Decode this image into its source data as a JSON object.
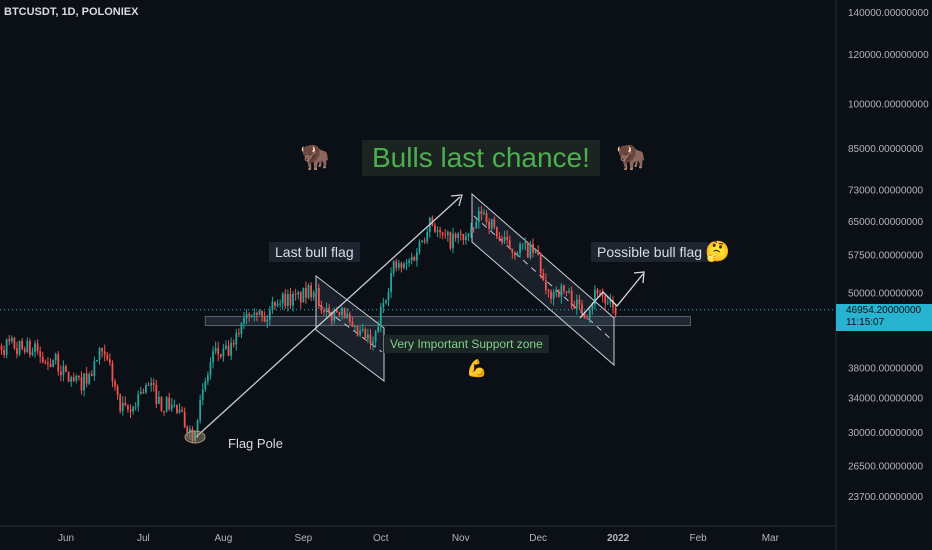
{
  "symbol_title": "BTCUSDT, 1D, POLONIEX",
  "colors": {
    "up": "#26a69a",
    "down": "#ef5350",
    "accent": "#27b4d0",
    "headline": "#4caf50"
  },
  "annotations": {
    "headline": "Bulls last chance!",
    "last_bull_flag": "Last bull flag",
    "possible_bull_flag": "Possible bull flag",
    "support_zone": "Very Important Support zone",
    "flag_pole": "Flag Pole",
    "bison_icon": "bison-emoji",
    "flexed_arm_icon": "flexed-biceps-emoji",
    "thinking_face_icon": "thinking-face-emoji"
  },
  "last_price": {
    "price": "46954.20000000",
    "countdown": "11:15:07"
  },
  "chart_data": {
    "type": "candlestick",
    "title": "BTCUSDT, 1D, POLONIEX",
    "x_ticks": [
      "Jun",
      "Jul",
      "Aug",
      "Sep",
      "Oct",
      "Nov",
      "Dec",
      "2022",
      "Feb",
      "Mar"
    ],
    "y_tick_labels": [
      "140000.00000000",
      "120000.00000000",
      "100000.00000000",
      "85000.00000000",
      "73000.00000000",
      "65000.00000000",
      "57500.00000000",
      "50000.00000000",
      "38000.00000000",
      "34000.00000000",
      "30000.00000000",
      "26500.00000000",
      "23700.00000000"
    ],
    "y_ticks": [
      140000,
      120000,
      100000,
      85000,
      73000,
      65000,
      57500,
      50000,
      38000,
      34000,
      30000,
      26500,
      23700
    ],
    "y_scale": "log",
    "ylim": [
      21500,
      150000
    ],
    "grid": false,
    "candle_closes": [
      [
        "2021-05-20",
        40500
      ],
      [
        "2021-05-24",
        38500
      ],
      [
        "2021-05-27",
        39200
      ],
      [
        "2021-06-01",
        36800
      ],
      [
        "2021-06-06",
        35800
      ],
      [
        "2021-06-10",
        36700
      ],
      [
        "2021-06-14",
        39800
      ],
      [
        "2021-06-18",
        38100
      ],
      [
        "2021-06-22",
        32500
      ],
      [
        "2021-06-26",
        32200
      ],
      [
        "2021-06-30",
        35000
      ],
      [
        "2021-07-04",
        35300
      ],
      [
        "2021-07-08",
        33100
      ],
      [
        "2021-07-12",
        33200
      ],
      [
        "2021-07-16",
        31500
      ],
      [
        "2021-07-20",
        29800
      ],
      [
        "2021-07-24",
        34300
      ],
      [
        "2021-07-28",
        40000
      ],
      [
        "2021-08-01",
        39800
      ],
      [
        "2021-08-05",
        40800
      ],
      [
        "2021-08-09",
        46300
      ],
      [
        "2021-08-13",
        47800
      ],
      [
        "2021-08-17",
        44700
      ],
      [
        "2021-08-21",
        48800
      ],
      [
        "2021-08-25",
        48900
      ],
      [
        "2021-08-29",
        48800
      ],
      [
        "2021-09-03",
        50000
      ],
      [
        "2021-09-06",
        51700
      ],
      [
        "2021-09-08",
        46000
      ],
      [
        "2021-09-12",
        46000
      ],
      [
        "2021-09-16",
        47700
      ],
      [
        "2021-09-20",
        43000
      ],
      [
        "2021-09-24",
        42800
      ],
      [
        "2021-09-28",
        41000
      ],
      [
        "2021-10-02",
        48200
      ],
      [
        "2021-10-06",
        55000
      ],
      [
        "2021-10-10",
        54700
      ],
      [
        "2021-10-14",
        57400
      ],
      [
        "2021-10-18",
        62000
      ],
      [
        "2021-10-20",
        66000
      ],
      [
        "2021-10-24",
        61300
      ],
      [
        "2021-10-28",
        60500
      ],
      [
        "2021-11-01",
        61300
      ],
      [
        "2021-11-05",
        61500
      ],
      [
        "2021-11-09",
        67500
      ],
      [
        "2021-11-13",
        64100
      ],
      [
        "2021-11-17",
        60300
      ],
      [
        "2021-11-21",
        58600
      ],
      [
        "2021-11-25",
        58900
      ],
      [
        "2021-11-29",
        57800
      ],
      [
        "2021-12-01",
        57000
      ],
      [
        "2021-12-04",
        49200
      ],
      [
        "2021-12-08",
        50600
      ],
      [
        "2021-12-12",
        50000
      ],
      [
        "2021-12-16",
        47600
      ],
      [
        "2021-12-20",
        46700
      ],
      [
        "2021-12-24",
        50800
      ],
      [
        "2021-12-28",
        47500
      ],
      [
        "2021-12-31",
        46954
      ]
    ]
  }
}
